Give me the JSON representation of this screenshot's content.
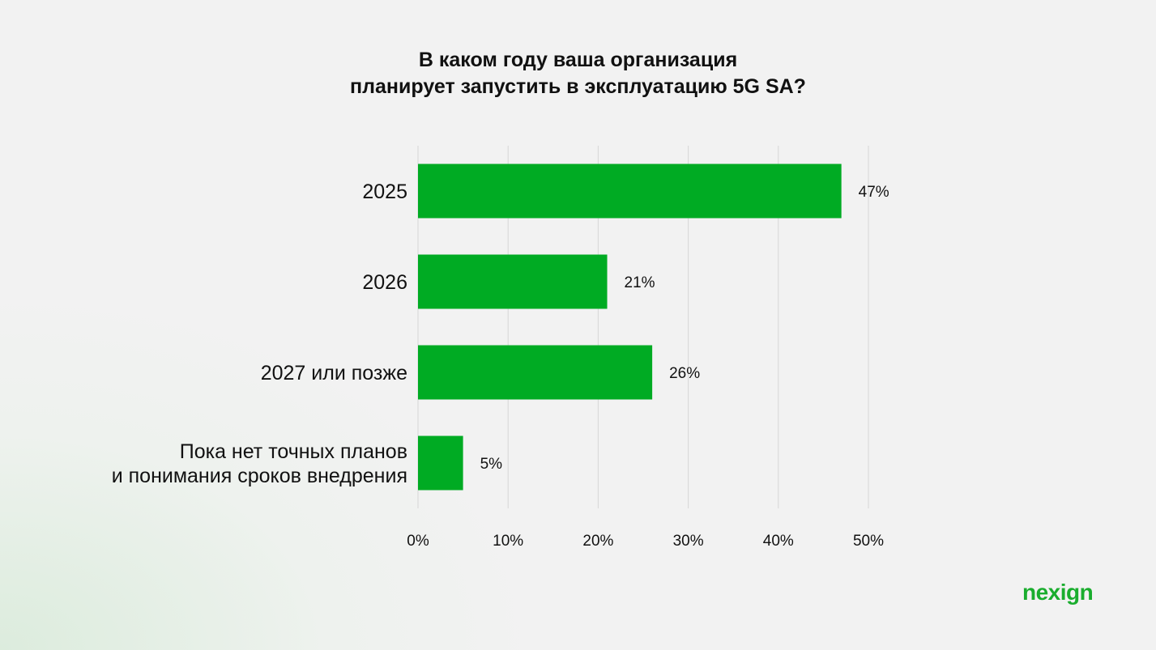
{
  "chart_data": {
    "type": "bar",
    "orientation": "horizontal",
    "title_lines": [
      "В каком году ваша организация",
      "планирует запустить в эксплуатацию 5G SA?"
    ],
    "categories": [
      [
        "2025"
      ],
      [
        "2026"
      ],
      [
        "2027 или позже"
      ],
      [
        "Пока нет точных планов",
        "и понимания сроков внедрения"
      ]
    ],
    "values": [
      47,
      21,
      26,
      5
    ],
    "value_labels": [
      "47%",
      "21%",
      "26%",
      "5%"
    ],
    "xlim": [
      0,
      50
    ],
    "x_ticks": [
      0,
      10,
      20,
      30,
      40,
      50
    ],
    "x_tick_labels": [
      "0%",
      "10%",
      "20%",
      "30%",
      "40%",
      "50%"
    ],
    "grid": true,
    "bar_color": "#00ab23",
    "grid_color": "#d6d6d6"
  },
  "brand": {
    "logo_text": "nexign",
    "color": "#1aad2e"
  }
}
